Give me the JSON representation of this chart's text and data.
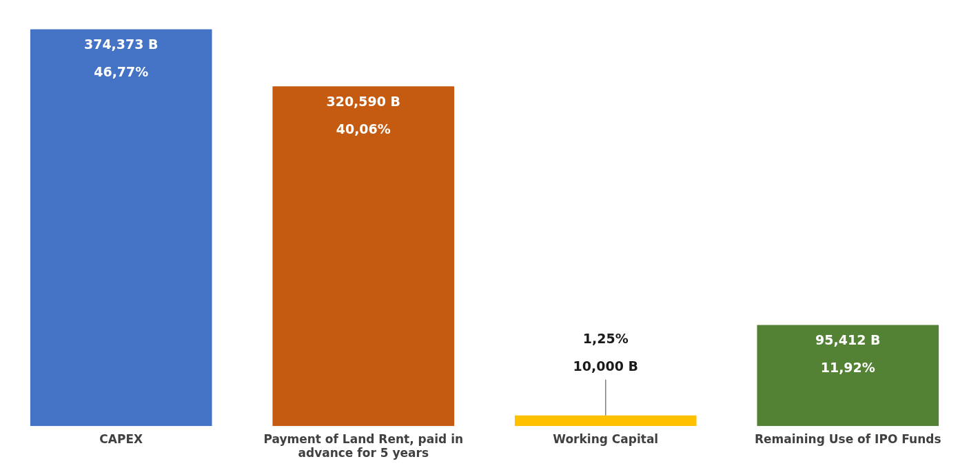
{
  "chart_data": {
    "type": "bar",
    "categories": [
      "CAPEX",
      "Payment of Land Rent, paid in advance for 5 years",
      "Working Capital",
      "Remaining Use of IPO Funds"
    ],
    "values": [
      374373,
      320590,
      10000,
      95412
    ],
    "colors": [
      "#4472c4",
      "#c55a11",
      "#ffc000",
      "#548235"
    ],
    "value_labels": [
      "374,373 B\n46,77%",
      "320,590 B\n40,06%",
      "1,25%\n10,000 B",
      "95,412 B\n11,92%"
    ],
    "grid": false,
    "legend": false
  }
}
